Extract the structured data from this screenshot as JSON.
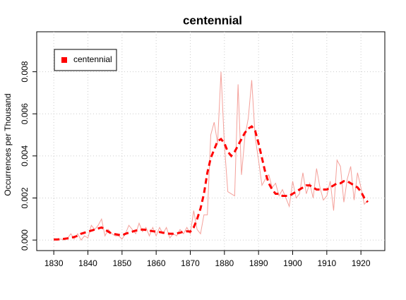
{
  "chart_data": {
    "type": "line",
    "title": "centennial",
    "y_label": "Occurrences per Thousand",
    "x": [
      1830,
      1831,
      1832,
      1833,
      1834,
      1835,
      1836,
      1837,
      1838,
      1839,
      1840,
      1841,
      1842,
      1843,
      1844,
      1845,
      1846,
      1847,
      1848,
      1849,
      1850,
      1851,
      1852,
      1853,
      1854,
      1855,
      1856,
      1857,
      1858,
      1859,
      1860,
      1861,
      1862,
      1863,
      1864,
      1865,
      1866,
      1867,
      1868,
      1869,
      1870,
      1871,
      1872,
      1873,
      1874,
      1875,
      1876,
      1877,
      1878,
      1879,
      1880,
      1881,
      1882,
      1883,
      1884,
      1885,
      1886,
      1887,
      1888,
      1889,
      1890,
      1891,
      1892,
      1893,
      1894,
      1895,
      1896,
      1897,
      1898,
      1899,
      1900,
      1901,
      1902,
      1903,
      1904,
      1905,
      1906,
      1907,
      1908,
      1909,
      1910,
      1911,
      1912,
      1913,
      1914,
      1915,
      1916,
      1917,
      1918,
      1919,
      1920,
      1921,
      1922
    ],
    "series": [
      {
        "color": "#f4a09a",
        "values": [
          3e-05,
          2e-05,
          5e-05,
          0,
          8e-05,
          0.0003,
          5e-05,
          0.0003,
          0,
          0.0002,
          0.0001,
          0.0007,
          0.0005,
          0.0007,
          0.001,
          0.0002,
          0.0005,
          0.0003,
          0.0002,
          0.0002,
          5e-05,
          0.0003,
          0.0007,
          0.0005,
          0.0003,
          0.0008,
          0.0004,
          0.0006,
          0.0002,
          0.0006,
          0.0002,
          0.0006,
          0.0003,
          0.0006,
          0.0001,
          0.0003,
          0.0002,
          0.0005,
          0.0003,
          0.0006,
          0.0003,
          0.0014,
          0.0005,
          0.0003,
          0.0012,
          0.0012,
          0.005,
          0.0056,
          0.0046,
          0.008,
          0.0045,
          0.0023,
          0.0022,
          0.0021,
          0.0074,
          0.0031,
          0.0049,
          0.0058,
          0.0076,
          0.0049,
          0.0038,
          0.0026,
          0.0029,
          0.0031,
          0.0025,
          0.0027,
          0.0021,
          0.0024,
          0.002,
          0.0016,
          0.0028,
          0.002,
          0.0022,
          0.0032,
          0.0022,
          0.0027,
          0.002,
          0.0034,
          0.0025,
          0.0019,
          0.0021,
          0.0028,
          0.0014,
          0.0038,
          0.0035,
          0.0018,
          0.0029,
          0.0035,
          0.0019,
          0.0032,
          0.0025,
          0.0017,
          0.0019
        ]
      },
      {
        "name": "centennial",
        "color": "#ff0000",
        "dashed": true,
        "values": [
          3e-05,
          3e-05,
          4e-05,
          6e-05,
          8e-05,
          0.0001,
          0.00015,
          0.0002,
          0.0003,
          0.00035,
          0.0004,
          0.00045,
          0.0005,
          0.00055,
          0.0006,
          0.0005,
          0.0004,
          0.0003,
          0.00028,
          0.00025,
          0.00022,
          0.0003,
          0.00035,
          0.0004,
          0.00045,
          0.00048,
          0.0005,
          0.00048,
          0.00045,
          0.00042,
          0.0004,
          0.00038,
          0.00035,
          0.00032,
          0.0003,
          0.0003,
          0.00032,
          0.00035,
          0.0004,
          0.00042,
          0.0004,
          0.0006,
          0.001,
          0.0015,
          0.0022,
          0.0032,
          0.0039,
          0.0043,
          0.0047,
          0.0048,
          0.0046,
          0.0042,
          0.004,
          0.0042,
          0.0045,
          0.0048,
          0.0051,
          0.0053,
          0.0054,
          0.0052,
          0.0046,
          0.0039,
          0.0032,
          0.0027,
          0.0024,
          0.0022,
          0.0022,
          0.0021,
          0.0021,
          0.0021,
          0.0022,
          0.0023,
          0.0024,
          0.0025,
          0.0026,
          0.0026,
          0.0025,
          0.0024,
          0.0024,
          0.0024,
          0.0024,
          0.0025,
          0.0026,
          0.0027,
          0.0027,
          0.0028,
          0.0028,
          0.0027,
          0.0026,
          0.0025,
          0.0023,
          0.002,
          0.0018
        ]
      }
    ],
    "xlim": [
      1825,
      1927
    ],
    "ylim": [
      -0.0005,
      0.0099
    ],
    "xticks": [
      1830,
      1840,
      1850,
      1860,
      1870,
      1880,
      1890,
      1900,
      1910,
      1920
    ],
    "yticks": [
      {
        "value": 0,
        "label": "0.000"
      },
      0.002,
      0.004,
      0.006,
      0.008
    ],
    "grid": true,
    "legend": "topleft"
  }
}
